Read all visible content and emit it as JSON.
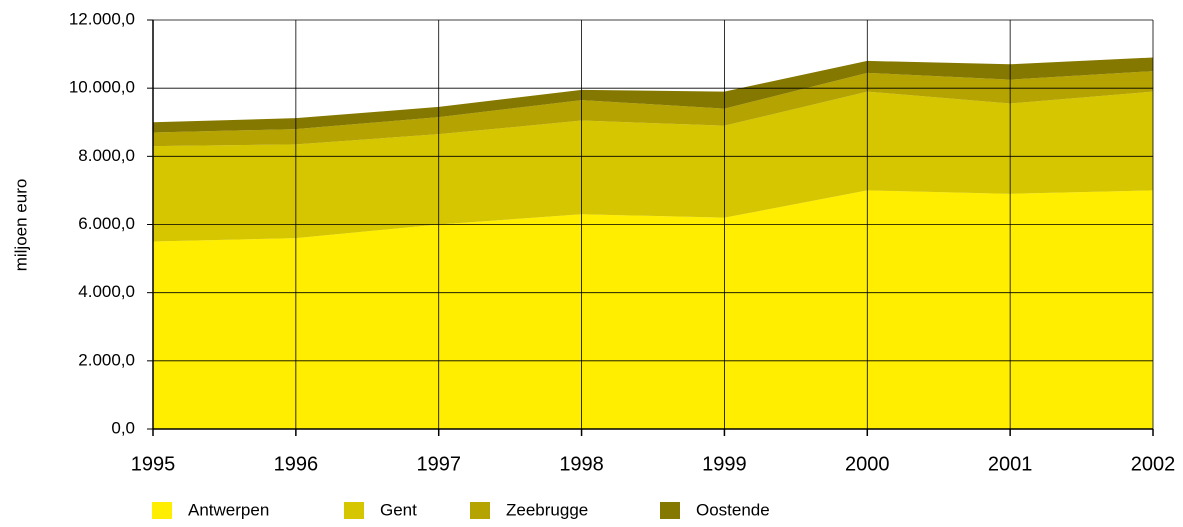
{
  "chart_data": {
    "type": "stacked_area",
    "y_label": "miljoen euro",
    "x": [
      1995,
      1996,
      1997,
      1998,
      1999,
      2000,
      2001,
      2002
    ],
    "xlim": [
      1995,
      2002
    ],
    "xticks": [
      1995,
      1996,
      1997,
      1998,
      1999,
      2000,
      2001,
      2002
    ],
    "ylim": [
      0,
      12000
    ],
    "yticks": [
      {
        "value": 0,
        "label": "0,0"
      },
      {
        "value": 2000,
        "label": "2.000,0"
      },
      {
        "value": 4000,
        "label": "4.000,0"
      },
      {
        "value": 6000,
        "label": "6.000,0"
      },
      {
        "value": 8000,
        "label": "8.000,0"
      },
      {
        "value": 10000,
        "label": "10.000,0"
      },
      {
        "value": 12000,
        "label": "12.000,0"
      }
    ],
    "grid": true,
    "legend": "bottom",
    "series": [
      {
        "name": "Antwerpen",
        "color": "#ffee00",
        "values": [
          5500,
          5600,
          6000,
          6300,
          6200,
          7000,
          6900,
          7000
        ]
      },
      {
        "name": "Gent",
        "color": "#d6c600",
        "values": [
          2800,
          2750,
          2650,
          2750,
          2700,
          2900,
          2650,
          2900
        ]
      },
      {
        "name": "Zeebrugge",
        "color": "#b4a300",
        "values": [
          400,
          450,
          500,
          600,
          500,
          550,
          700,
          600
        ]
      },
      {
        "name": "Oostende",
        "color": "#857800",
        "values": [
          300,
          320,
          300,
          300,
          500,
          350,
          450,
          400
        ]
      }
    ]
  }
}
